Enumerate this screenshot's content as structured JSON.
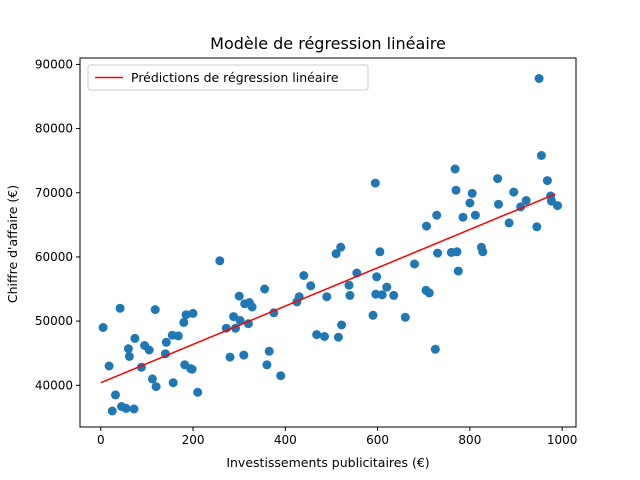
{
  "chart_data": {
    "type": "scatter",
    "title": "Modèle de régression linéaire",
    "xlabel": "Investissements publicitaires (€)",
    "ylabel": "Chiffre d'affaire (€)",
    "xlim": [
      -45,
      1030
    ],
    "ylim": [
      33500,
      91000
    ],
    "xticks": [
      0,
      200,
      400,
      600,
      800,
      1000
    ],
    "yticks": [
      40000,
      50000,
      60000,
      70000,
      80000,
      90000
    ],
    "grid": false,
    "legend": {
      "placement": "top-left",
      "entries": [
        "Prédictions de régression linéaire"
      ]
    },
    "scatter_color": "#1f77b4",
    "line_color": "#ff0000",
    "points": [
      [
        5,
        49000
      ],
      [
        18,
        43000
      ],
      [
        25,
        36000
      ],
      [
        32,
        38500
      ],
      [
        42,
        52000
      ],
      [
        45,
        36700
      ],
      [
        55,
        36400
      ],
      [
        60,
        45700
      ],
      [
        62,
        44500
      ],
      [
        72,
        36300
      ],
      [
        74,
        47300
      ],
      [
        88,
        42800
      ],
      [
        95,
        46200
      ],
      [
        105,
        45500
      ],
      [
        112,
        41000
      ],
      [
        118,
        51800
      ],
      [
        120,
        39800
      ],
      [
        140,
        44900
      ],
      [
        142,
        46700
      ],
      [
        155,
        47800
      ],
      [
        157,
        40400
      ],
      [
        168,
        47700
      ],
      [
        180,
        49800
      ],
      [
        182,
        43200
      ],
      [
        185,
        51000
      ],
      [
        195,
        42600
      ],
      [
        198,
        42500
      ],
      [
        200,
        51200
      ],
      [
        210,
        38900
      ],
      [
        258,
        59400
      ],
      [
        272,
        48900
      ],
      [
        280,
        44400
      ],
      [
        288,
        50700
      ],
      [
        292,
        48900
      ],
      [
        300,
        53900
      ],
      [
        302,
        50100
      ],
      [
        310,
        44700
      ],
      [
        312,
        52700
      ],
      [
        320,
        49600
      ],
      [
        322,
        52900
      ],
      [
        328,
        52200
      ],
      [
        355,
        55000
      ],
      [
        360,
        43200
      ],
      [
        365,
        45300
      ],
      [
        375,
        51300
      ],
      [
        390,
        41500
      ],
      [
        425,
        53000
      ],
      [
        430,
        53800
      ],
      [
        440,
        57100
      ],
      [
        455,
        55500
      ],
      [
        468,
        47900
      ],
      [
        485,
        47600
      ],
      [
        490,
        53800
      ],
      [
        510,
        60500
      ],
      [
        515,
        47500
      ],
      [
        520,
        61500
      ],
      [
        522,
        49400
      ],
      [
        538,
        55600
      ],
      [
        540,
        54000
      ],
      [
        555,
        57500
      ],
      [
        590,
        50900
      ],
      [
        595,
        71500
      ],
      [
        596,
        54200
      ],
      [
        598,
        56900
      ],
      [
        605,
        60800
      ],
      [
        610,
        54100
      ],
      [
        620,
        55300
      ],
      [
        635,
        54000
      ],
      [
        660,
        50600
      ],
      [
        680,
        58900
      ],
      [
        705,
        54800
      ],
      [
        706,
        64800
      ],
      [
        712,
        54400
      ],
      [
        725,
        45600
      ],
      [
        728,
        66500
      ],
      [
        730,
        60600
      ],
      [
        760,
        60700
      ],
      [
        768,
        73700
      ],
      [
        770,
        70400
      ],
      [
        772,
        60800
      ],
      [
        775,
        57800
      ],
      [
        785,
        66200
      ],
      [
        800,
        68400
      ],
      [
        805,
        69900
      ],
      [
        812,
        66500
      ],
      [
        825,
        61500
      ],
      [
        828,
        60800
      ],
      [
        860,
        72200
      ],
      [
        862,
        68200
      ],
      [
        885,
        65300
      ],
      [
        895,
        70100
      ],
      [
        910,
        67800
      ],
      [
        922,
        68800
      ],
      [
        945,
        64700
      ],
      [
        950,
        87800
      ],
      [
        955,
        75800
      ],
      [
        968,
        71900
      ],
      [
        975,
        69500
      ],
      [
        977,
        68700
      ],
      [
        990,
        68000
      ]
    ],
    "regression_line": {
      "x": [
        0,
        985
      ],
      "y": [
        40400,
        69800
      ]
    }
  }
}
